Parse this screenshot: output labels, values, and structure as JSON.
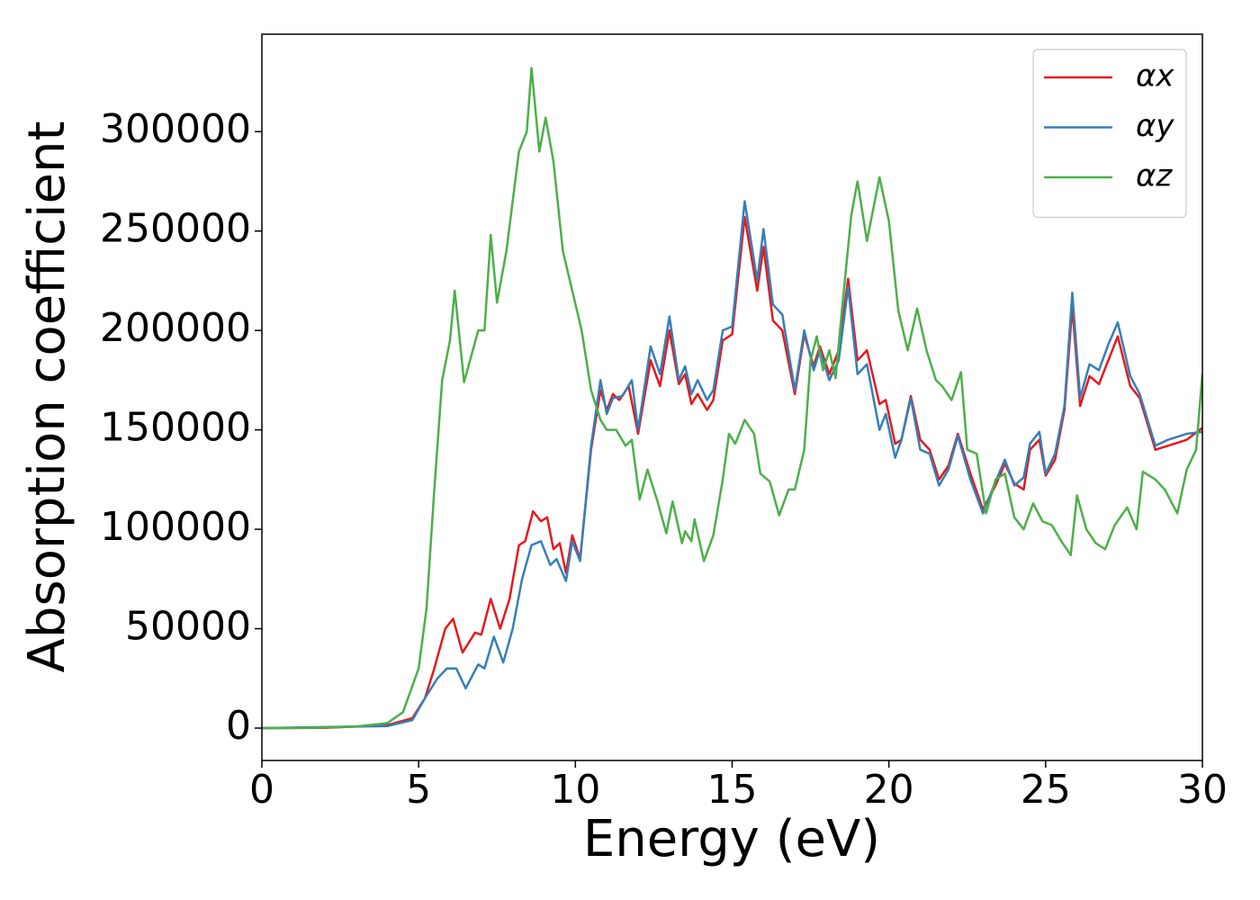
{
  "chart_data": {
    "type": "line",
    "xlabel": "Energy (eV)",
    "ylabel": "Absorption coefficient",
    "xlim": [
      0,
      30
    ],
    "xticks": [
      0,
      5,
      10,
      15,
      20,
      25,
      30
    ],
    "ylim": [
      -16300,
      349000
    ],
    "yticks": [
      0,
      50000,
      100000,
      150000,
      200000,
      250000,
      300000
    ],
    "grid": false,
    "legend": "upper right",
    "series": [
      {
        "name": "αx",
        "color": "#e41a1c",
        "x": [
          0,
          2,
          4,
          4.8,
          5.2,
          5.5,
          5.85,
          6.1,
          6.4,
          6.8,
          7.0,
          7.3,
          7.6,
          7.9,
          8.2,
          8.4,
          8.65,
          8.9,
          9.1,
          9.3,
          9.5,
          9.7,
          9.9,
          10.15,
          10.5,
          10.8,
          11.0,
          11.2,
          11.4,
          11.7,
          12.0,
          12.4,
          12.7,
          13.0,
          13.3,
          13.5,
          13.7,
          13.9,
          14.2,
          14.4,
          14.7,
          15.0,
          15.4,
          15.8,
          16.0,
          16.3,
          16.6,
          17.0,
          17.3,
          17.6,
          17.8,
          18.1,
          18.4,
          18.7,
          19.0,
          19.3,
          19.7,
          19.9,
          20.2,
          20.4,
          20.7,
          21.0,
          21.3,
          21.6,
          21.9,
          22.2,
          22.6,
          23.0,
          23.4,
          23.7,
          24.0,
          24.3,
          24.5,
          24.8,
          25.0,
          25.3,
          25.6,
          25.85,
          26.1,
          26.4,
          26.7,
          27.0,
          27.3,
          27.7,
          28.0,
          28.5,
          28.9,
          29.5,
          30.0
        ],
        "values": [
          0,
          100,
          1500,
          5000,
          15000,
          30000,
          50000,
          55000,
          38000,
          48000,
          47000,
          65000,
          50000,
          65000,
          92000,
          94000,
          109000,
          104000,
          106000,
          90000,
          93000,
          78000,
          97000,
          85000,
          140000,
          170000,
          160000,
          168000,
          165000,
          172000,
          148000,
          185000,
          172000,
          200000,
          173000,
          178000,
          163000,
          168000,
          160000,
          165000,
          195000,
          198000,
          257000,
          220000,
          242000,
          205000,
          200000,
          168000,
          198000,
          182000,
          192000,
          178000,
          190000,
          226000,
          185000,
          190000,
          163000,
          165000,
          143000,
          145000,
          167000,
          145000,
          140000,
          125000,
          132000,
          148000,
          128000,
          110000,
          122000,
          133000,
          123000,
          120000,
          140000,
          145000,
          127000,
          135000,
          160000,
          212000,
          162000,
          177000,
          173000,
          185000,
          197000,
          172000,
          166000,
          140000,
          142000,
          145000,
          151000
        ]
      },
      {
        "name": "αy",
        "color": "#377eb8",
        "x": [
          0,
          4,
          4.8,
          5.2,
          5.6,
          5.9,
          6.2,
          6.5,
          6.9,
          7.1,
          7.4,
          7.7,
          8.0,
          8.3,
          8.6,
          8.9,
          9.2,
          9.4,
          9.7,
          9.9,
          10.15,
          10.5,
          10.8,
          11.0,
          11.2,
          11.5,
          11.8,
          12.0,
          12.4,
          12.7,
          13.0,
          13.3,
          13.5,
          13.7,
          13.9,
          14.2,
          14.4,
          14.7,
          15.0,
          15.4,
          15.8,
          16.0,
          16.3,
          16.6,
          17.0,
          17.3,
          17.6,
          17.8,
          18.1,
          18.4,
          18.7,
          19.0,
          19.3,
          19.7,
          19.9,
          20.2,
          20.4,
          20.7,
          21.0,
          21.3,
          21.6,
          21.9,
          22.2,
          22.6,
          23.0,
          23.4,
          23.7,
          24.0,
          24.3,
          24.5,
          24.8,
          25.0,
          25.3,
          25.6,
          25.85,
          26.1,
          26.4,
          26.7,
          27.0,
          27.3,
          27.7,
          28.0,
          28.5,
          28.9,
          29.5,
          30.0
        ],
        "values": [
          0,
          1000,
          4000,
          15000,
          25000,
          30000,
          30000,
          20000,
          32000,
          30000,
          46000,
          33000,
          50000,
          75000,
          92000,
          94000,
          82000,
          85000,
          74000,
          94000,
          84000,
          142000,
          175000,
          158000,
          166000,
          167000,
          175000,
          150000,
          192000,
          178000,
          207000,
          175000,
          182000,
          168000,
          175000,
          165000,
          170000,
          200000,
          202000,
          265000,
          225000,
          251000,
          213000,
          208000,
          170000,
          200000,
          180000,
          190000,
          175000,
          185000,
          222000,
          178000,
          183000,
          150000,
          158000,
          136000,
          145000,
          166000,
          140000,
          138000,
          122000,
          130000,
          147000,
          125000,
          108000,
          124000,
          135000,
          122000,
          126000,
          143000,
          149000,
          128000,
          138000,
          162000,
          219000,
          166000,
          183000,
          180000,
          193000,
          204000,
          177000,
          168000,
          142000,
          145000,
          148000,
          149000
        ]
      },
      {
        "name": "αz",
        "color": "#4daf4a",
        "x": [
          0,
          1,
          2,
          3,
          4,
          4.5,
          5,
          5.25,
          5.5,
          5.75,
          6.0,
          6.15,
          6.45,
          6.9,
          7.1,
          7.3,
          7.5,
          7.8,
          8.2,
          8.45,
          8.6,
          8.85,
          9.05,
          9.3,
          9.6,
          9.9,
          10.2,
          10.5,
          10.8,
          11.0,
          11.3,
          11.6,
          11.8,
          12.05,
          12.3,
          12.6,
          12.9,
          13.1,
          13.4,
          13.5,
          13.7,
          13.8,
          14.1,
          14.4,
          14.7,
          14.9,
          15.1,
          15.4,
          15.7,
          15.9,
          16.2,
          16.5,
          16.8,
          17.0,
          17.3,
          17.5,
          17.7,
          17.9,
          18.1,
          18.3,
          18.5,
          18.8,
          19.0,
          19.3,
          19.7,
          20.0,
          20.3,
          20.6,
          20.9,
          21.2,
          21.5,
          21.7,
          22.0,
          22.3,
          22.5,
          22.8,
          23.1,
          23.4,
          23.7,
          24.0,
          24.3,
          24.6,
          24.9,
          25.2,
          25.5,
          25.8,
          26.0,
          26.3,
          26.6,
          26.9,
          27.2,
          27.6,
          27.9,
          28.1,
          28.5,
          28.8,
          29.2,
          29.5,
          29.8,
          30.0
        ],
        "values": [
          0,
          0,
          300,
          800,
          2500,
          8000,
          30000,
          60000,
          120000,
          175000,
          195000,
          220000,
          174000,
          200000,
          200000,
          248000,
          214000,
          240000,
          290000,
          300000,
          332000,
          290000,
          307000,
          285000,
          240000,
          220000,
          200000,
          170000,
          155000,
          150000,
          150000,
          142000,
          145000,
          115000,
          130000,
          115000,
          98000,
          114000,
          93000,
          99000,
          94000,
          105000,
          84000,
          97000,
          125000,
          148000,
          143000,
          155000,
          148000,
          128000,
          124000,
          107000,
          120000,
          120000,
          140000,
          185000,
          197000,
          180000,
          190000,
          176000,
          210000,
          258000,
          275000,
          245000,
          277000,
          255000,
          210000,
          190000,
          211000,
          190000,
          175000,
          172000,
          165000,
          179000,
          140000,
          138000,
          108000,
          125000,
          128000,
          106000,
          100000,
          113000,
          104000,
          102000,
          94000,
          87000,
          117000,
          100000,
          93000,
          90000,
          102000,
          111000,
          100000,
          129000,
          125000,
          120000,
          108000,
          130000,
          140000,
          178000
        ]
      }
    ]
  }
}
